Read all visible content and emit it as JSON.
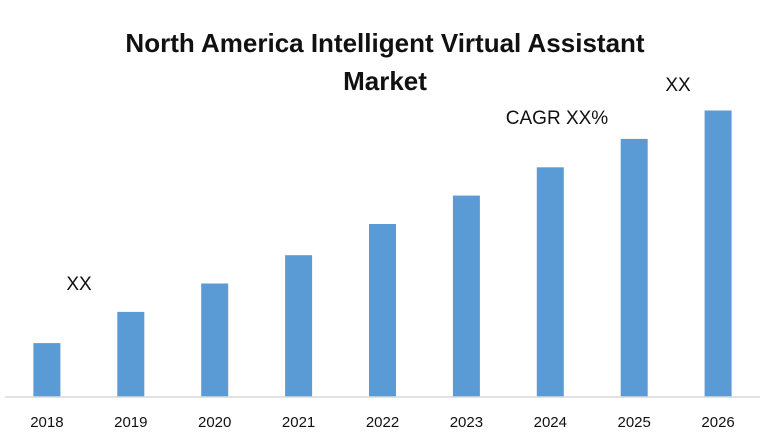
{
  "chart_data": {
    "type": "bar",
    "title_line1": "North America Intelligent Virtual Assistant",
    "title_line2": "Market",
    "categories": [
      "2018",
      "2019",
      "2020",
      "2021",
      "2022",
      "2023",
      "2024",
      "2025",
      "2026"
    ],
    "values": [
      1.9,
      3.0,
      4.0,
      5.0,
      6.1,
      7.1,
      8.1,
      9.1,
      10.1
    ],
    "ylim": [
      0,
      11
    ],
    "xlabel": "",
    "ylabel": "",
    "grid": false,
    "legend": "none",
    "bar_color": "#5B9BD5",
    "axis_color": "#D9D9D9",
    "annotations": {
      "start_value_label": "XX",
      "end_value_label": "XX",
      "cagr_label": "CAGR XX%"
    }
  }
}
